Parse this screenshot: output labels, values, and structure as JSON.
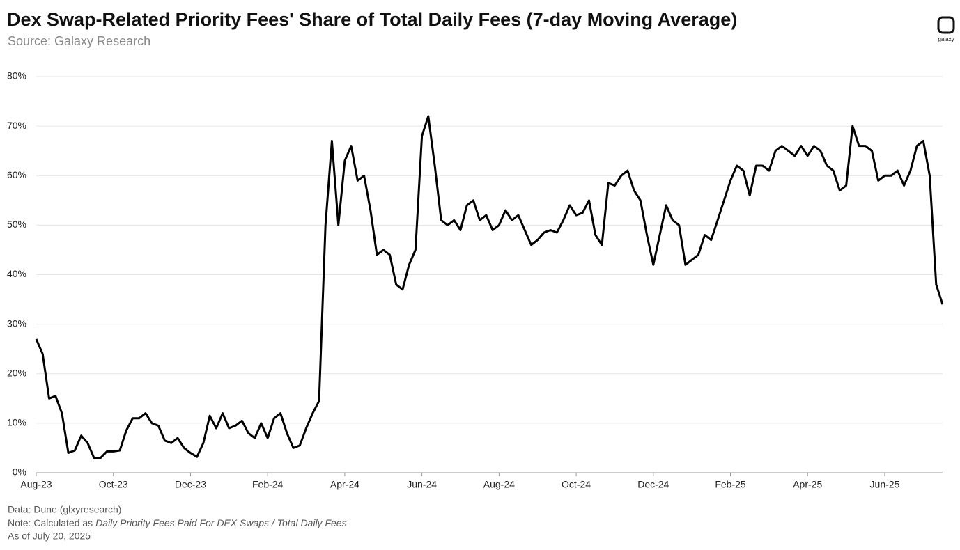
{
  "chart_data": {
    "type": "line",
    "title": "Dex Swap-Related Priority Fees' Share of Total Daily Fees (7-day Moving Average)",
    "subtitle": "Source: Galaxy Research",
    "logo": "galaxy",
    "footer": {
      "data": "Data: Dune (glxyresearch)",
      "note_prefix": "Note: Calculated as",
      "note_italic": "Daily Priority Fees Paid For DEX Swaps / Total Daily Fees",
      "as_of": "As of July 20, 2025"
    },
    "categories": [
      "Aug-23",
      null,
      null,
      null,
      null,
      null,
      null,
      null,
      null,
      null,
      null,
      null,
      "Oct-23",
      null,
      null,
      null,
      null,
      null,
      null,
      null,
      null,
      null,
      null,
      null,
      "Dec-23",
      null,
      null,
      null,
      null,
      null,
      null,
      null,
      null,
      null,
      null,
      null,
      "Feb-24",
      null,
      null,
      null,
      null,
      null,
      null,
      null,
      null,
      null,
      null,
      null,
      "Apr-24",
      null,
      null,
      null,
      null,
      null,
      null,
      null,
      null,
      null,
      null,
      null,
      "Jun-24",
      null,
      null,
      null,
      null,
      null,
      null,
      null,
      null,
      null,
      null,
      null,
      "Aug-24",
      null,
      null,
      null,
      null,
      null,
      null,
      null,
      null,
      null,
      null,
      null,
      "Oct-24",
      null,
      null,
      null,
      null,
      null,
      null,
      null,
      null,
      null,
      null,
      null,
      "Dec-24",
      null,
      null,
      null,
      null,
      null,
      null,
      null,
      null,
      null,
      null,
      null,
      "Feb-25",
      null,
      null,
      null,
      null,
      null,
      null,
      null,
      null,
      null,
      null,
      null,
      "Apr-25",
      null,
      null,
      null,
      null,
      null,
      null,
      null,
      null,
      null,
      null,
      null,
      "Jun-25",
      null,
      null,
      null,
      null,
      null,
      null,
      null,
      null,
      null
    ],
    "series": [
      {
        "name": "Share",
        "color": "#000000",
        "values": [
          27,
          24,
          15,
          15.5,
          12,
          4,
          4.5,
          7.5,
          6,
          3,
          3,
          4.3,
          4.3,
          4.5,
          8.5,
          11,
          11,
          12,
          10,
          9.5,
          6.5,
          6,
          7,
          5,
          4,
          3.2,
          6,
          11.5,
          9,
          12,
          9,
          9.5,
          10.5,
          8,
          7,
          10,
          7,
          11,
          12,
          8,
          5,
          5.5,
          9,
          12,
          14.5,
          50,
          67,
          50,
          63,
          66,
          59,
          60,
          53,
          44,
          45,
          44,
          38,
          37,
          42,
          45,
          68,
          72,
          62,
          51,
          50,
          51,
          49,
          54,
          55,
          51,
          52,
          49,
          50,
          53,
          51,
          52,
          49,
          46,
          47,
          48.5,
          49,
          48.5,
          51,
          54,
          52,
          52.5,
          55,
          48,
          46,
          58.5,
          58,
          60,
          61,
          57,
          55,
          48,
          42,
          48,
          54,
          51,
          50,
          42,
          43,
          44,
          48,
          47,
          51,
          55,
          59,
          62,
          61,
          56,
          62,
          62,
          61,
          65,
          66,
          65,
          64,
          66,
          64,
          66,
          65,
          62,
          61,
          57,
          58,
          70,
          66,
          66,
          65,
          59,
          60,
          60,
          61,
          58,
          61,
          66,
          67,
          60,
          38,
          34
        ]
      }
    ],
    "ylim": [
      0,
      80
    ],
    "yticks": [
      {
        "value": 0,
        "label": "0%"
      },
      {
        "value": 10,
        "label": "10%"
      },
      {
        "value": 20,
        "label": "20%"
      },
      {
        "value": 30,
        "label": "30%"
      },
      {
        "value": 40,
        "label": "40%"
      },
      {
        "value": 50,
        "label": "50%"
      },
      {
        "value": 60,
        "label": "60%"
      },
      {
        "value": 70,
        "label": "70%"
      },
      {
        "value": 80,
        "label": "80%"
      }
    ],
    "grid": true
  }
}
